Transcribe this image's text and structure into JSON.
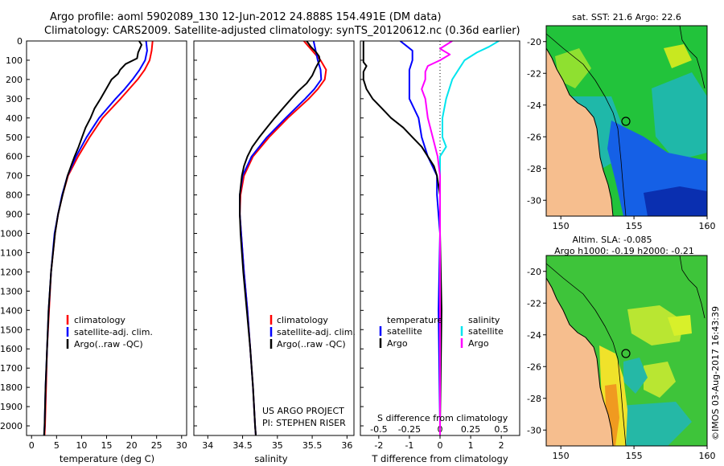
{
  "header": {
    "title_line1": "Argo profile: aoml 5902089_130 12-Jun-2012 24.888S 154.491E (DM data)",
    "title_line2": "Climatology: CARS2009. Satellite-adjusted climatology: synTS_20120612.nc (0.36d earlier)"
  },
  "colors": {
    "climatology": "#ff0000",
    "satellite": "#0000ff",
    "argo": "#000000",
    "argo_salinity": "#ff00ff",
    "sat_salinity": "#00e5ee"
  },
  "depth_axis": {
    "min": 0,
    "max": 2050,
    "ticks": [
      "0",
      "100",
      "200",
      "300",
      "400",
      "500",
      "600",
      "700",
      "800",
      "900",
      "1000",
      "1100",
      "1200",
      "1300",
      "1400",
      "1500",
      "1600",
      "1700",
      "1800",
      "1900",
      "2000"
    ]
  },
  "chart_data": [
    {
      "type": "line",
      "name": "temperature",
      "xlabel": "temperature (deg C)",
      "xlim": [
        -1,
        31
      ],
      "xticks": [
        "0",
        "5",
        "10",
        "15",
        "20",
        "25",
        "30"
      ],
      "legend": {
        "labels": [
          "climatology",
          "satellite-adj. clim.",
          "Argo(..raw -QC)"
        ]
      },
      "series": [
        {
          "name": "climatology",
          "depth": [
            0,
            50,
            100,
            150,
            200,
            250,
            300,
            400,
            500,
            600,
            700,
            800,
            900,
            1000,
            1200,
            1400,
            1600,
            1800,
            2000,
            2050
          ],
          "values": [
            24.2,
            24.0,
            23.6,
            22.6,
            21.2,
            19.5,
            17.8,
            14.2,
            11.6,
            9.3,
            7.3,
            6.2,
            5.3,
            4.7,
            3.9,
            3.5,
            3.1,
            2.9,
            2.7,
            2.6
          ]
        },
        {
          "name": "satellite-adj. clim.",
          "depth": [
            0,
            50,
            100,
            150,
            200,
            250,
            300,
            400,
            500,
            600,
            700,
            800,
            900,
            1000,
            1200,
            1400,
            1600,
            1800,
            2000,
            2050
          ],
          "values": [
            22.9,
            23.1,
            22.7,
            21.6,
            20.2,
            18.6,
            16.8,
            13.5,
            11.0,
            8.9,
            7.2,
            6.1,
            5.3,
            4.6,
            3.9,
            3.4,
            3.1,
            2.8,
            2.6,
            2.5
          ]
        },
        {
          "name": "Argo(..raw -QC)",
          "depth": [
            0,
            20,
            60,
            90,
            120,
            150,
            170,
            200,
            250,
            300,
            350,
            400,
            450,
            500,
            550,
            600,
            650,
            700,
            800,
            900,
            1000,
            1200,
            1400,
            1600,
            1800,
            2000,
            2050
          ],
          "values": [
            21.5,
            22.0,
            21.3,
            21.1,
            18.8,
            17.7,
            17.3,
            16.0,
            14.9,
            13.8,
            12.6,
            11.8,
            10.8,
            10.1,
            9.4,
            8.6,
            7.9,
            7.2,
            6.2,
            5.3,
            4.7,
            3.9,
            3.4,
            3.1,
            2.8,
            2.6,
            2.5
          ]
        }
      ]
    },
    {
      "type": "line",
      "name": "salinity",
      "xlabel": "salinity",
      "xlim": [
        33.8,
        36.1
      ],
      "xticks": [
        "34",
        "34.5",
        "35",
        "35.5",
        "36"
      ],
      "legend": {
        "labels": [
          "climatology",
          "satellite-adj. clim.",
          "Argo(..raw -QC)"
        ]
      },
      "annotations": [
        "US ARGO PROJECT",
        "PI: STEPHEN RISER"
      ],
      "series": [
        {
          "name": "climatology",
          "depth": [
            0,
            50,
            100,
            150,
            200,
            250,
            300,
            400,
            500,
            600,
            700,
            800,
            900,
            1000,
            1200,
            1400,
            1600,
            1800,
            2000,
            2050
          ],
          "values": [
            35.38,
            35.5,
            35.62,
            35.7,
            35.68,
            35.58,
            35.45,
            35.15,
            34.88,
            34.65,
            34.52,
            34.47,
            34.46,
            34.48,
            34.52,
            34.57,
            34.61,
            34.65,
            34.68,
            34.69
          ]
        },
        {
          "name": "satellite-adj. clim.",
          "depth": [
            0,
            50,
            100,
            150,
            200,
            250,
            300,
            400,
            500,
            600,
            700,
            800,
            900,
            1000,
            1200,
            1400,
            1600,
            1800,
            2000,
            2050
          ],
          "values": [
            35.52,
            35.55,
            35.58,
            35.62,
            35.63,
            35.53,
            35.4,
            35.12,
            34.85,
            34.63,
            34.5,
            34.46,
            34.46,
            34.48,
            34.52,
            34.57,
            34.61,
            34.65,
            34.68,
            34.69
          ]
        },
        {
          "name": "Argo(..raw -QC)",
          "depth": [
            0,
            30,
            60,
            80,
            100,
            140,
            180,
            220,
            260,
            300,
            350,
            400,
            450,
            500,
            550,
            600,
            650,
            700,
            800,
            900,
            1000,
            1200,
            1400,
            1600,
            1800,
            2000,
            2050
          ],
          "values": [
            35.42,
            35.48,
            35.56,
            35.6,
            35.61,
            35.55,
            35.5,
            35.42,
            35.3,
            35.2,
            35.08,
            34.96,
            34.85,
            34.74,
            34.64,
            34.57,
            34.52,
            34.49,
            34.46,
            34.46,
            34.47,
            34.51,
            34.56,
            34.61,
            34.65,
            34.68,
            34.69
          ]
        }
      ]
    },
    {
      "type": "line",
      "name": "difference-from-climatology",
      "xlabel_bottom": "T difference from climatology",
      "xlabel_top": "S difference from climatology",
      "xlim": [
        -2.6,
        2.6
      ],
      "xticks_T": [
        "-2",
        "-1",
        "0",
        "1",
        "2"
      ],
      "xticks_S": [
        "-0.5",
        "-0.25",
        "0",
        "0.25",
        "0.5"
      ],
      "legend": {
        "temperature_header": "temperature",
        "salinity_header": "salinity",
        "labels": [
          "satellite",
          "Argo",
          "satellite",
          "Argo"
        ]
      },
      "series": [
        {
          "name": "temperature satellite",
          "depth": [
            0,
            50,
            100,
            150,
            200,
            300,
            400,
            500,
            600,
            700,
            800,
            1000,
            1400,
            2000,
            2050
          ],
          "values": [
            -1.3,
            -0.9,
            -0.9,
            -1.0,
            -1.0,
            -1.0,
            -0.7,
            -0.6,
            -0.4,
            -0.1,
            -0.1,
            0.0,
            -0.05,
            0.0,
            0.0
          ]
        },
        {
          "name": "temperature Argo",
          "depth": [
            0,
            40,
            70,
            90,
            110,
            130,
            160,
            200,
            250,
            300,
            350,
            400,
            450,
            500,
            550,
            600,
            650,
            700,
            800,
            1000,
            1400,
            2000,
            2050
          ],
          "values": [
            -2.5,
            -2.5,
            -2.5,
            -2.5,
            -2.5,
            -2.4,
            -2.5,
            -2.5,
            -2.4,
            -2.2,
            -1.9,
            -1.6,
            -1.2,
            -0.9,
            -0.6,
            -0.4,
            -0.2,
            -0.1,
            0.0,
            0.0,
            0.05,
            0.0,
            0.0
          ]
        },
        {
          "name": "salinity satellite",
          "depth": [
            0,
            30,
            60,
            100,
            150,
            200,
            300,
            400,
            500,
            550,
            600,
            700,
            800,
            1000,
            1400,
            2000,
            2050
          ],
          "values": [
            0.48,
            0.4,
            0.3,
            0.2,
            0.15,
            0.1,
            0.05,
            0.02,
            0.02,
            0.05,
            0.0,
            0.0,
            0.0,
            0.0,
            0.0,
            0.0,
            0.0
          ]
        },
        {
          "name": "salinity Argo",
          "depth": [
            0,
            40,
            70,
            100,
            130,
            160,
            200,
            250,
            300,
            400,
            500,
            600,
            700,
            800,
            1000,
            1400,
            2000,
            2050
          ],
          "values": [
            0.1,
            0.0,
            0.08,
            0.0,
            -0.1,
            -0.12,
            -0.12,
            -0.15,
            -0.12,
            -0.1,
            -0.06,
            -0.02,
            0.0,
            0.0,
            0.0,
            0.0,
            0.0,
            0.0
          ]
        }
      ]
    },
    {
      "type": "heatmap",
      "name": "sst-map",
      "title": "sat. SST: 21.6 Argo: 22.6",
      "xlim": [
        149,
        160
      ],
      "ylim": [
        -31,
        -19
      ],
      "xticks": [
        "150",
        "155",
        "160"
      ],
      "yticks": [
        "-20",
        "-22",
        "-24",
        "-26",
        "-28",
        "-30"
      ],
      "float_position": {
        "lon": 154.491,
        "lat": -24.888
      }
    },
    {
      "type": "heatmap",
      "name": "sla-map",
      "title_line1": "Altim. SLA: -0.085",
      "title_line2": "Argo h1000: -0.19 h2000: -0.21",
      "xlim": [
        149,
        160
      ],
      "ylim": [
        -31,
        -19
      ],
      "xticks": [
        "150",
        "155",
        "160"
      ],
      "yticks": [
        "-20",
        "-22",
        "-24",
        "-26",
        "-28",
        "-30"
      ],
      "float_position": {
        "lon": 154.491,
        "lat": -24.888
      }
    }
  ],
  "footer": {
    "credit": "©IMOS 03-Aug-2017 16:43:39"
  }
}
